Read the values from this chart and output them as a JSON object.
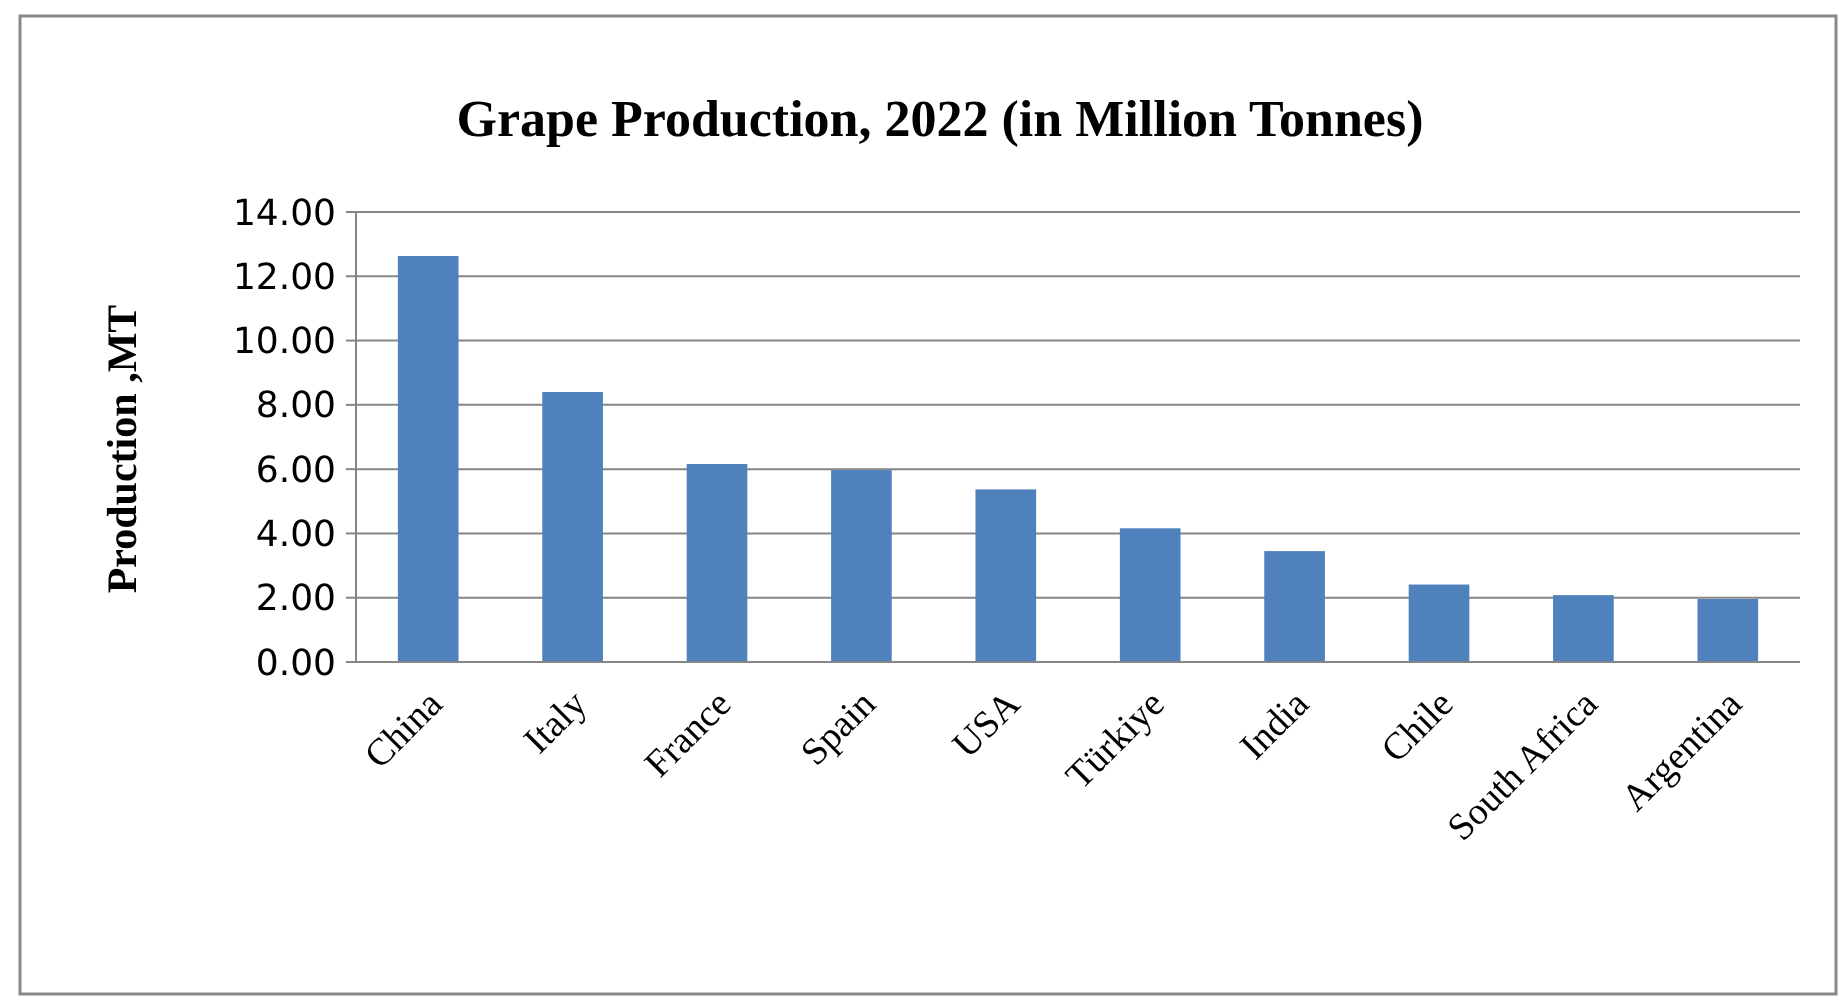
{
  "chart_data": {
    "type": "bar",
    "title": "Grape Production, 2022 (in Million Tonnes)",
    "ylabel": "Production ,MT",
    "categories": [
      "China",
      "Italy",
      "France",
      "Spain",
      "USA",
      "Türkiye",
      "India",
      "Chile",
      "South Africa",
      "Argentina"
    ],
    "values": [
      12.63,
      8.4,
      6.16,
      5.97,
      5.37,
      4.16,
      3.45,
      2.41,
      2.08,
      1.96
    ],
    "color": "#4f81bd",
    "ylim": [
      0,
      14
    ],
    "yticks": [
      {
        "value": 0,
        "label": "0.00"
      },
      {
        "value": 2,
        "label": "2.00"
      },
      {
        "value": 4,
        "label": "4.00"
      },
      {
        "value": 6,
        "label": "6.00"
      },
      {
        "value": 8,
        "label": "8.00"
      },
      {
        "value": 10,
        "label": "10.00"
      },
      {
        "value": 12,
        "label": "12.00"
      },
      {
        "value": 14,
        "label": "14.00"
      }
    ],
    "grid": "y"
  }
}
